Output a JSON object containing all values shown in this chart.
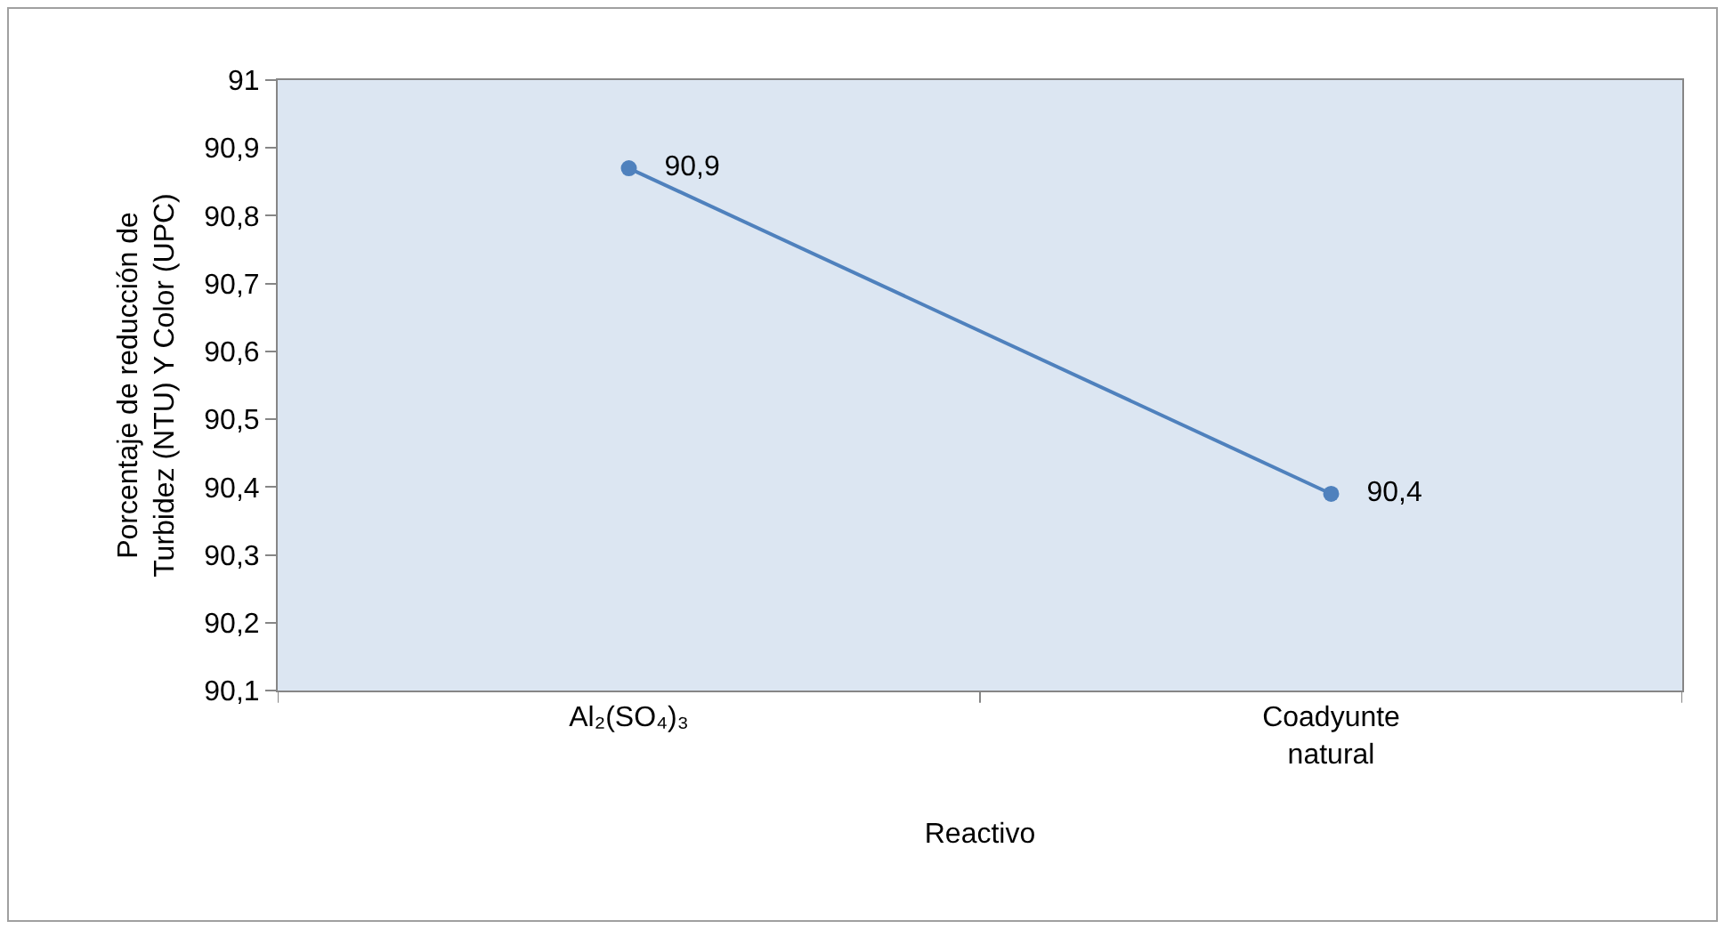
{
  "chart_data": {
    "type": "line",
    "xlabel": "Reactivo",
    "ylabel": "Porcentaje de reducción de\nTurbidez (NTU) Y Color (UPC)",
    "categories": [
      "Al₂(SO₄)₃",
      "Coadyunte\nnatural"
    ],
    "series": [
      {
        "color": "#4f81bd",
        "values": [
          90.87,
          90.39
        ],
        "value_labels": [
          "90,9",
          "90,4"
        ]
      }
    ],
    "ylim": [
      90.1,
      91
    ],
    "yticks": [
      {
        "value": 90.1,
        "label": "90,1"
      },
      {
        "value": 90.2,
        "label": "90,2"
      },
      {
        "value": 90.3,
        "label": "90,3"
      },
      {
        "value": 90.4,
        "label": "90,4"
      },
      {
        "value": 90.5,
        "label": "90,5"
      },
      {
        "value": 90.6,
        "label": "90,6"
      },
      {
        "value": 90.7,
        "label": "90,7"
      },
      {
        "value": 90.8,
        "label": "90,8"
      },
      {
        "value": 90.9,
        "label": "90,9"
      },
      {
        "value": 91,
        "label": "91"
      }
    ],
    "grid": false,
    "legend": false,
    "marker": "circle",
    "line_style": "solid"
  }
}
